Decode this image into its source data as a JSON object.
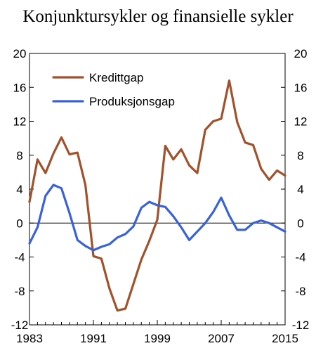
{
  "chart_data": {
    "type": "line",
    "title": "Konjunktursykler og finansielle sykler",
    "xlabel": "",
    "ylabel": "",
    "xlim": [
      1983,
      2015
    ],
    "ylim": [
      -12,
      20
    ],
    "x_ticks": [
      "1983",
      "1991",
      "1999",
      "2007",
      "2015"
    ],
    "y_ticks": [
      "20",
      "16",
      "12",
      "8",
      "4",
      "0",
      "-4",
      "-8",
      "-12"
    ],
    "x": [
      1983,
      1984,
      1985,
      1986,
      1987,
      1988,
      1989,
      1990,
      1991,
      1992,
      1993,
      1994,
      1995,
      1996,
      1997,
      1998,
      1999,
      2000,
      2001,
      2002,
      2003,
      2004,
      2005,
      2006,
      2007,
      2008,
      2009,
      2010,
      2011,
      2012,
      2013,
      2014,
      2015
    ],
    "series": [
      {
        "name": "Kredittgap",
        "color": "#a0522d",
        "values": [
          2.5,
          7.5,
          5.9,
          8.2,
          10.1,
          8.1,
          8.3,
          4.5,
          -3.9,
          -4.2,
          -7.7,
          -10.3,
          -10.1,
          -7.2,
          -4.3,
          -2.1,
          0.4,
          9.1,
          7.5,
          8.7,
          6.8,
          5.9,
          11.0,
          12.0,
          12.3,
          16.8,
          11.9,
          9.5,
          9.2,
          6.4,
          5.1,
          6.2,
          5.6
        ]
      },
      {
        "name": "Produksjonsgap",
        "color": "#3a62d6",
        "values": [
          -2.4,
          -0.5,
          3.2,
          4.5,
          4.1,
          1.2,
          -2.0,
          -2.7,
          -3.2,
          -2.8,
          -2.5,
          -1.7,
          -1.3,
          -0.4,
          1.8,
          2.5,
          2.1,
          1.9,
          0.8,
          -0.5,
          -2.0,
          -1.0,
          0.0,
          1.3,
          3.0,
          0.9,
          -0.8,
          -0.8,
          0.0,
          0.3,
          0.0,
          -0.5,
          -1.0
        ]
      }
    ],
    "legend_position": "top-left",
    "grid": false,
    "zero_line": true
  }
}
